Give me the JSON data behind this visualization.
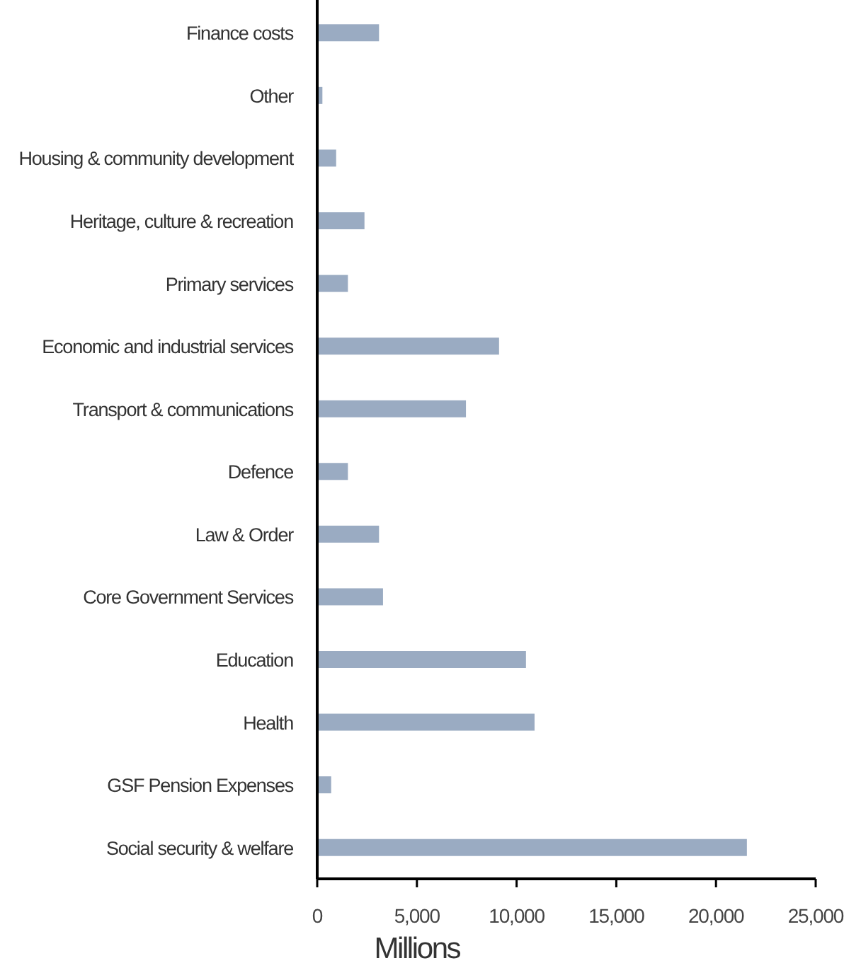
{
  "chart_data": {
    "type": "bar",
    "orientation": "horizontal",
    "xlabel": "Millions",
    "categories": [
      "Finance costs",
      "Other",
      "Housing & community development",
      "Heritage, culture & recreation",
      "Primary services",
      "Economic and industrial services",
      "Transport & communications",
      "Defence",
      "Law & Order",
      "Core Government Services",
      "Education",
      "Health",
      "GSF Pension Expenses",
      "Social security & welfare"
    ],
    "values": [
      3100,
      260,
      950,
      2370,
      1540,
      9120,
      7460,
      1540,
      3100,
      3300,
      10470,
      10900,
      700,
      21550
    ],
    "color": "#9aabc2",
    "xlim": [
      0,
      25000
    ],
    "xticks": [
      {
        "value": 0,
        "label": "0"
      },
      {
        "value": 5000,
        "label": "5,000"
      },
      {
        "value": 10000,
        "label": "10,000"
      },
      {
        "value": 15000,
        "label": "15,000"
      },
      {
        "value": 20000,
        "label": "20,000"
      },
      {
        "value": 25000,
        "label": "25,000"
      }
    ],
    "grid": false
  }
}
